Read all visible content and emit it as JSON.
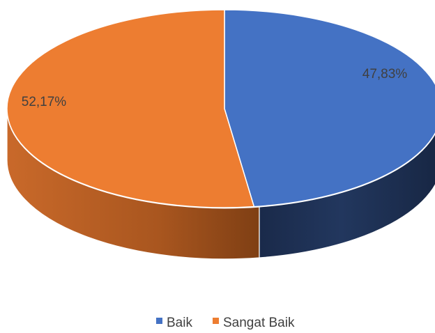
{
  "chart_data": {
    "type": "pie",
    "style": "3d",
    "title": "",
    "categories": [
      "Baik",
      "Sangat Baik"
    ],
    "values": [
      47.83,
      52.17
    ],
    "data_labels": [
      "47,83%",
      "52,17%"
    ],
    "colors": [
      "#4472C4",
      "#ED7D31"
    ],
    "legend": {
      "position": "bottom",
      "items": [
        {
          "label": "Baik",
          "color": "#4472C4"
        },
        {
          "label": "Sangat Baik",
          "color": "#ED7D31"
        }
      ]
    }
  }
}
